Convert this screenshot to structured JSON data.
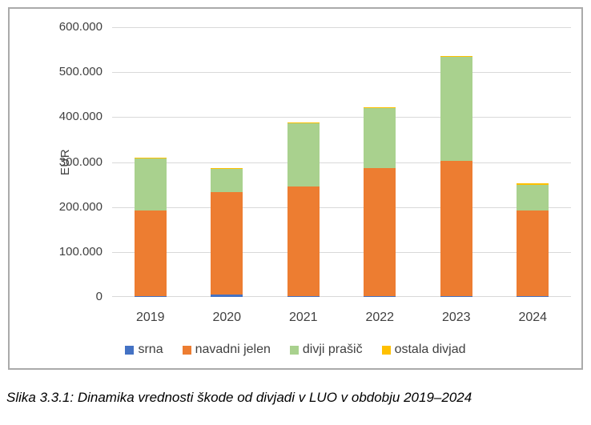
{
  "chart_data": {
    "type": "bar",
    "stacked": true,
    "categories": [
      "2019",
      "2020",
      "2021",
      "2022",
      "2023",
      "2024"
    ],
    "series": [
      {
        "name": "srna",
        "color": "#4472C4",
        "values": [
          2500,
          5000,
          2000,
          1000,
          1000,
          1500
        ]
      },
      {
        "name": "navadni jelen",
        "color": "#ED7D31",
        "values": [
          190000,
          228000,
          243000,
          286000,
          302000,
          190500
        ]
      },
      {
        "name": "divji prašič",
        "color": "#A9D18E",
        "values": [
          115000,
          52000,
          142000,
          133500,
          232000,
          57000
        ]
      },
      {
        "name": "ostala divjad",
        "color": "#FFC000",
        "values": [
          2500,
          2000,
          2000,
          1500,
          1500,
          4000
        ]
      }
    ],
    "totals": [
      310000,
      287000,
      389000,
      422000,
      536500,
      253000
    ],
    "ylabel": "EUR",
    "xlabel": "",
    "ylim": [
      0,
      600000
    ],
    "ytick_labels": [
      "0",
      "100.000",
      "200.000",
      "300.000",
      "400.000",
      "500.000",
      "600.000"
    ],
    "grid": true,
    "legend_position": "bottom"
  },
  "caption": {
    "text": "Slika 3.3.1: Dinamika vrednosti škode od divjadi v LUO v obdobju 2019–2024"
  }
}
